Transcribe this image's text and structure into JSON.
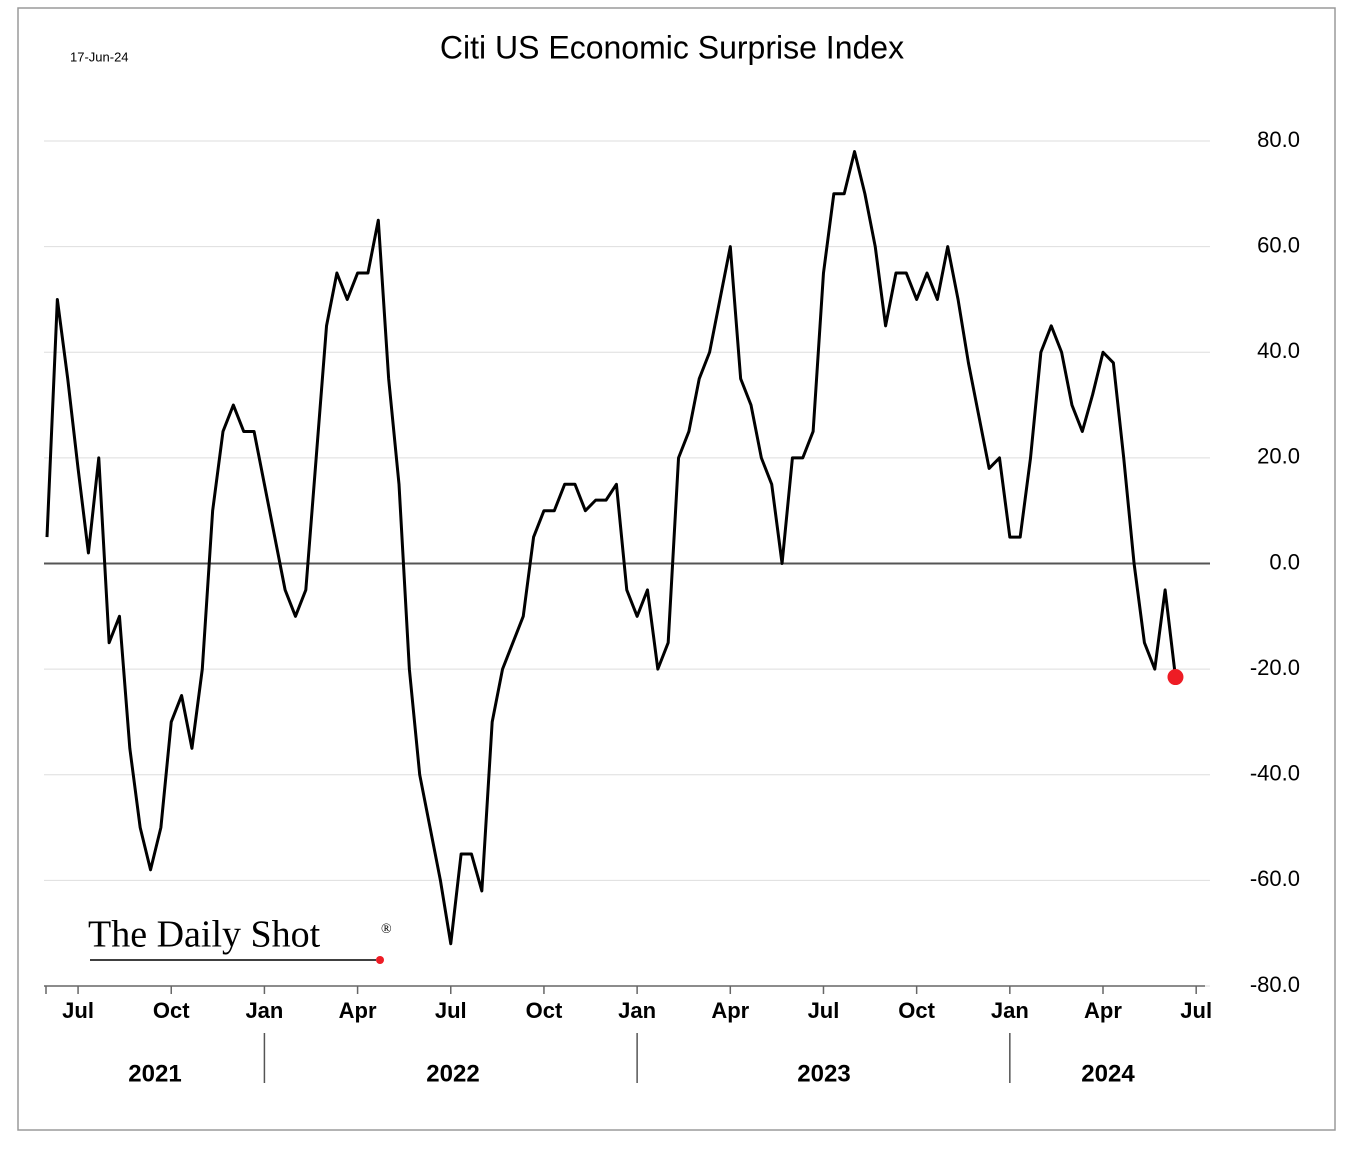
{
  "chart_data": {
    "type": "line",
    "title": "Citi US Economic Surprise Index",
    "date_label": "17-Jun-24",
    "source": "The Daily Shot",
    "source_mark": "®",
    "categories": [
      null,
      null,
      null,
      "Jul",
      null,
      null,
      null,
      null,
      null,
      null,
      null,
      null,
      "Oct",
      null,
      null,
      null,
      null,
      null,
      null,
      null,
      null,
      "Jan",
      null,
      null,
      null,
      null,
      null,
      null,
      null,
      null,
      "Apr",
      null,
      null,
      null,
      null,
      null,
      null,
      null,
      null,
      "Jul",
      null,
      null,
      null,
      null,
      null,
      null,
      null,
      null,
      "Oct",
      null,
      null,
      null,
      null,
      null,
      null,
      null,
      null,
      "Jan",
      null,
      null,
      null,
      null,
      null,
      null,
      null,
      null,
      "Apr",
      null,
      null,
      null,
      null,
      null,
      null,
      null,
      null,
      "Jul",
      null,
      null,
      null,
      null,
      null,
      null,
      null,
      null,
      "Oct",
      null,
      null,
      null,
      null,
      null,
      null,
      null,
      null,
      "Jan",
      null,
      null,
      null,
      null,
      null,
      null,
      null,
      null,
      "Apr",
      null,
      null,
      null,
      null,
      null,
      null,
      null,
      null,
      "Jul"
    ],
    "year_labels": [
      "2021",
      "2022",
      "2023",
      "2024"
    ],
    "series": [
      {
        "name": "Citi US Economic Surprise Index",
        "color": "#000000",
        "last_point_color": "#ee1c25",
        "values": [
          5,
          50,
          35,
          18,
          2,
          20,
          -15,
          -10,
          -35,
          -50,
          -58,
          -50,
          -30,
          -25,
          -35,
          -20,
          10,
          25,
          30,
          25,
          25,
          15,
          5,
          -5,
          -10,
          -5,
          20,
          45,
          55,
          50,
          55,
          55,
          65,
          35,
          15,
          -20,
          -40,
          -50,
          -60,
          -72,
          -55,
          -55,
          -62,
          -30,
          -20,
          -15,
          -10,
          5,
          10,
          10,
          15,
          15,
          10,
          12,
          12,
          15,
          -5,
          -10,
          -5,
          -20,
          -15,
          20,
          25,
          35,
          40,
          50,
          60,
          35,
          30,
          20,
          15,
          0,
          20,
          20,
          25,
          55,
          70,
          70,
          78,
          70,
          60,
          45,
          55,
          55,
          50,
          55,
          50,
          60,
          50,
          38,
          28,
          18,
          20,
          5,
          5,
          20,
          40,
          45,
          40,
          30,
          25,
          32,
          40,
          38,
          20,
          0,
          -15,
          -20,
          -5,
          -21.5,
          null,
          null
        ]
      }
    ],
    "ylim": [
      -80,
      80
    ],
    "yticks": [
      {
        "value": 80,
        "label": "80.0"
      },
      {
        "value": 60,
        "label": "60.0"
      },
      {
        "value": 40,
        "label": "40.0"
      },
      {
        "value": 20,
        "label": "20.0"
      },
      {
        "value": 0,
        "label": "0.0"
      },
      {
        "value": -20,
        "label": "-20.0"
      },
      {
        "value": -40,
        "label": "-40.0"
      },
      {
        "value": -60,
        "label": "-60.0"
      },
      {
        "value": -80,
        "label": "-80.0"
      }
    ],
    "grid": true
  }
}
